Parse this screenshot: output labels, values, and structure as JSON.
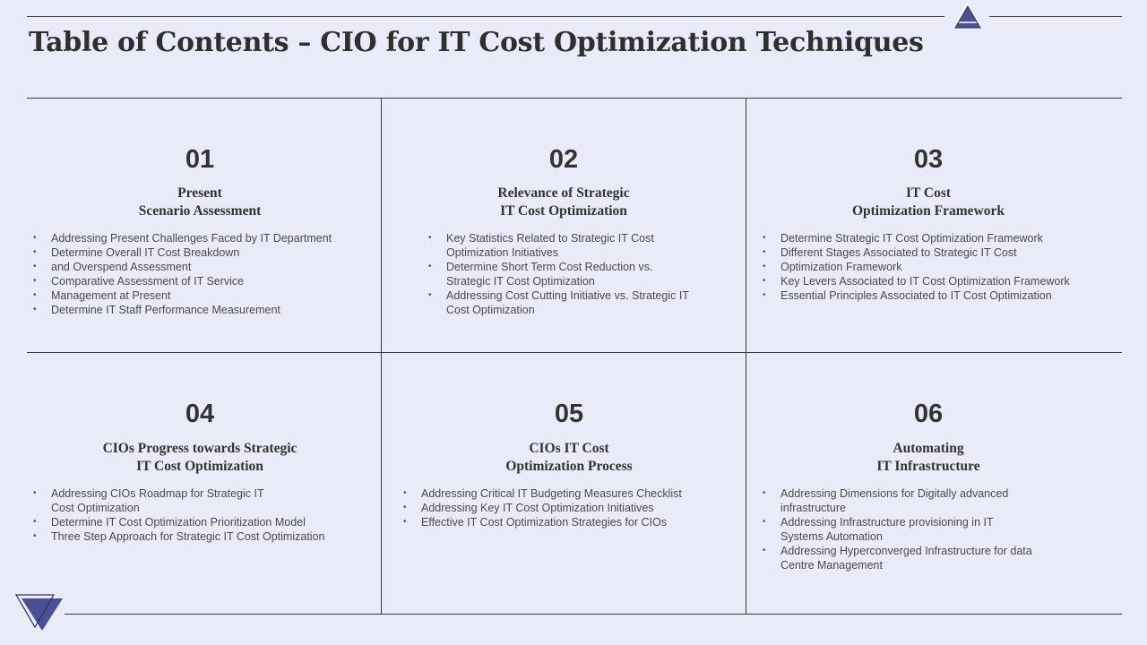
{
  "page": {
    "title": "Table of Contents – CIO for IT Cost Optimization Techniques",
    "colors": {
      "background": "#e9ebf8",
      "accent": "#4b4f94",
      "text": "#333333",
      "line": "#3a3a3a"
    },
    "decorations": [
      "triangle-up-icon",
      "triangle-down-icon"
    ]
  },
  "sections": [
    {
      "number": "01",
      "heading": [
        "Present",
        "Scenario Assessment"
      ],
      "items": [
        "Addressing Present Challenges Faced by IT Department",
        "Determine Overall  IT Cost Breakdown",
        "and Overspend Assessment",
        "Comparative  Assessment of IT Service",
        "Management  at Present",
        "Determine IT Staff Performance  Measurement"
      ]
    },
    {
      "number": "02",
      "heading": [
        "Relevance of Strategic",
        "IT Cost Optimization"
      ],
      "items": [
        "Key Statistics Related to Strategic IT Cost Optimization Initiatives",
        "Determine  Short Term Cost Reduction vs. Strategic IT Cost Optimization",
        "Addressing Cost Cutting Initiative vs. Strategic IT Cost Optimization"
      ]
    },
    {
      "number": "03",
      "heading": [
        "IT Cost",
        "Optimization Framework"
      ],
      "items": [
        "Determine  Strategic IT Cost Optimization Framework",
        "Different  Stages Associated to Strategic IT Cost",
        "Optimization Framework",
        "Key Levers  Associated to IT Cost Optimization Framework",
        "Essential Principles Associated to IT Cost Optimization"
      ]
    },
    {
      "number": "04",
      "heading": [
        "CIOs Progress towards Strategic",
        "IT Cost Optimization"
      ],
      "items": [
        "Addressing CIOs Roadmap for Strategic IT Cost Optimization",
        "Determine  IT Cost Optimization Prioritization Model",
        "Three  Step Approach for Strategic IT Cost Optimization"
      ]
    },
    {
      "number": "05",
      "heading": [
        "CIOs IT Cost",
        "Optimization Process"
      ],
      "items": [
        "Addressing Critical IT Budgeting Measures Checklist",
        "Addressing Key IT Cost Optimization Initiatives",
        "Effective  IT Cost Optimization Strategies for CIOs"
      ]
    },
    {
      "number": "06",
      "heading": [
        "Automating",
        "IT Infrastructure"
      ],
      "items": [
        "Addressing Dimensions for Digitally advanced infrastructure",
        "Addressing Infrastructure  provisioning  in IT Systems Automation",
        "Addressing Hyperconverged  Infrastructure  for data Centre Management"
      ]
    }
  ]
}
